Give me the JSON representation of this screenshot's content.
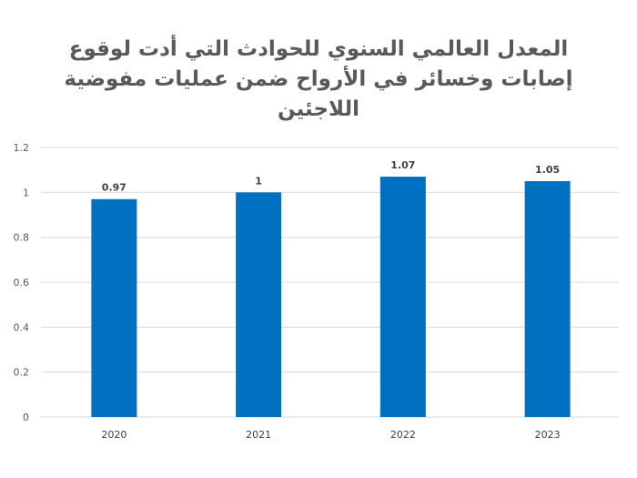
{
  "chart_data": {
    "type": "bar",
    "title": "المعدل العالمي السنوي للحوادث التي أدت لوقوع إصابات وخسائر في الأرواح ضمن عمليات مفوضية اللاجئين",
    "categories": [
      "2020",
      "2021",
      "2022",
      "2023"
    ],
    "values": [
      0.97,
      1,
      1.07,
      1.05
    ],
    "data_labels": [
      "0.97",
      "1",
      "1.07",
      "1.05"
    ],
    "yticks": [
      "0",
      "0.2",
      "0.4",
      "0.6",
      "0.8",
      "1",
      "1.2"
    ],
    "ylim": [
      0,
      1.2
    ],
    "grid": true,
    "bar_color": "#0070C0",
    "xlabel": "",
    "ylabel": ""
  }
}
